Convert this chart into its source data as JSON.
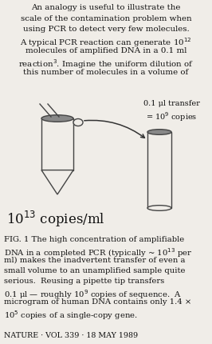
{
  "bg_color": "#f0ede8",
  "text_color": "#111111",
  "tube_fill": "#f0ede8",
  "tube_stroke": "#444444",
  "cap_fill": "#888888",
  "arrow_color": "#333333",
  "para_lines": [
    "An analogy is useful to illustrate the",
    "scale of the contamination problem when",
    "using PCR to detect very few molecules.",
    "A typical PCR reaction can generate 10$^{12}$",
    "molecules of amplified DNA in a 0.1 ml",
    "reaction$^{3}$. Imagine the uniform dilution of",
    "this number of molecules in a volume of"
  ],
  "label_transfer": "0.1 μl transfer",
  "label_copies": "= 10$^{9}$ copies",
  "big_label_base": "10",
  "big_label_exp": "13",
  "big_label_suffix": " copies/ml",
  "caption_lines": [
    "FIG. 1 The high concentration of amplifiable",
    "DNA in a completed PCR (typically ~ 10$^{13}$ per",
    "ml) makes the inadvertent transfer of even a",
    "small volume to an unamplified sample quite",
    "serious.  Reusing a pipette tip transfers",
    "0.1 μl — roughly 10$^{9}$ copies of sequence.  A",
    "microgram of human DNA contains only 1.4 ×",
    "10$^{5}$ copies of a single-copy gene."
  ],
  "footer": "NATURE · VOL 339 · 18 MAY 1989"
}
